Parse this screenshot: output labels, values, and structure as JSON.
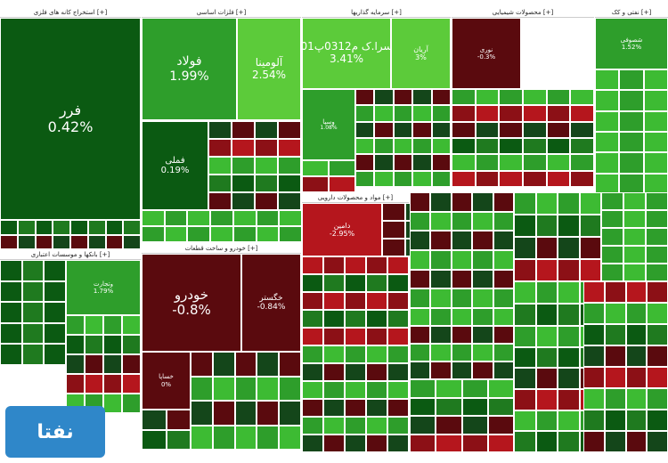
{
  "chart_data": {
    "type": "treemap",
    "title": "",
    "colors": {
      "up_strong": "#0b5a12",
      "up": "#2e9e2b",
      "up_light": "#5ccb3a",
      "down": "#b5161d",
      "down_dark": "#5a0a0e"
    },
    "groups": [
      {
        "name": "استخراج کانه های فلزی [+]",
        "items": [
          {
            "symbol": "فرر",
            "pct": "0.42%",
            "change": 0.42
          }
        ]
      },
      {
        "name": "فلزات اساسی [+]",
        "items": [
          {
            "symbol": "فولاد",
            "pct": "1.99%",
            "change": 1.99
          },
          {
            "symbol": "آلومینا",
            "pct": "2.54%",
            "change": 2.54
          },
          {
            "symbol": "فملی",
            "pct": "0.19%",
            "change": 0.19
          }
        ]
      },
      {
        "name": "سرمایه گذاریها [+]",
        "items": [
          {
            "symbol": "سرا.ک م0312پ01",
            "pct": "3.41%",
            "change": 3.41
          },
          {
            "symbol": "آریان",
            "pct": "3%",
            "change": 3
          },
          {
            "symbol": "وسپا",
            "pct": "1.08%",
            "change": 1.08
          }
        ]
      },
      {
        "name": "محصولات شیمیایی [+]",
        "items": [
          {
            "symbol": "نوری",
            "pct": "-0.3%",
            "change": -0.3
          }
        ]
      },
      {
        "name": "نفتی و کک [+]",
        "items": [
          {
            "symbol": "شصوفی",
            "pct": "1.52%",
            "change": 1.52
          }
        ]
      },
      {
        "name": "بانکها و موسسات اعتباری [+]",
        "items": [
          {
            "symbol": "وتجارت",
            "pct": "1.79%",
            "change": 1.79
          }
        ]
      },
      {
        "name": "خودرو و ساخت قطعات [+]",
        "items": [
          {
            "symbol": "خودرو",
            "pct": "-0.8%",
            "change": -0.8
          },
          {
            "symbol": "خگستر",
            "pct": "-0.84%",
            "change": -0.84
          },
          {
            "symbol": "خساپا",
            "pct": "0%",
            "change": 0
          }
        ]
      },
      {
        "name": "مواد و محصولات دارویی [+]",
        "items": [
          {
            "symbol": "دامین",
            "pct": "-2.95%",
            "change": -2.95
          }
        ]
      }
    ]
  }
}
